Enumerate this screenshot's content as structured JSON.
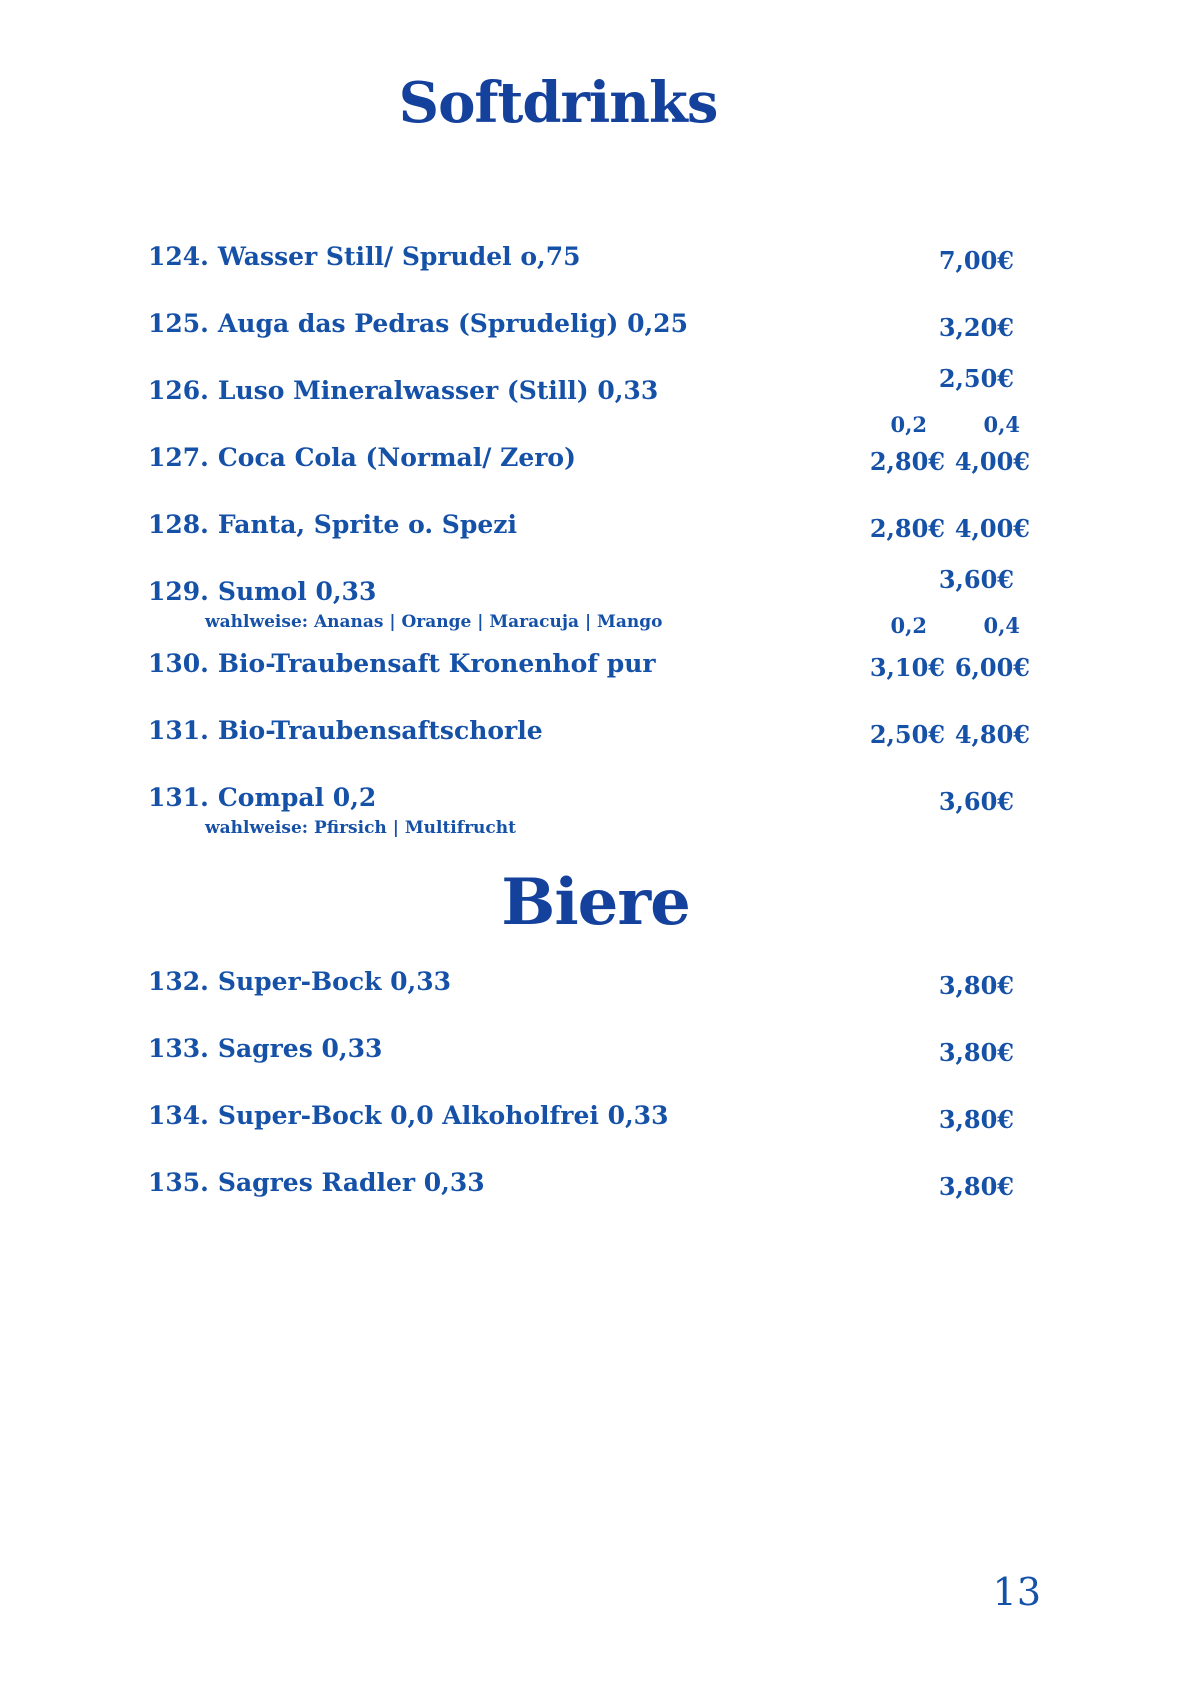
{
  "page": {
    "background_color": "#ffffff",
    "accent_color": "#1651A8",
    "heading_color": "#14419C",
    "page_number": "13"
  },
  "sections": [
    {
      "title": "Softdrinks",
      "size_columns": [
        "0,2",
        "0,4"
      ],
      "rows": [
        {
          "number": "124.",
          "name": "Wasser Still/ Sprudel o,75",
          "price": "7,00€"
        },
        {
          "number": "125.",
          "name": "Auga das Pedras (Sprudelig) 0,25",
          "price": "3,20€"
        },
        {
          "number": "126.",
          "name": "Luso Mineralwasser (Still) 0,33",
          "price": "2,50€",
          "sizes": {
            "small": "0,2",
            "large": "0,4"
          }
        },
        {
          "number": "127.",
          "name": "Coca Cola (Normal/ Zero)",
          "price_02": "2,80€",
          "price_04": "4,00€"
        },
        {
          "number": "128.",
          "name": "Fanta, Sprite o. Spezi",
          "price_02": "2,80€",
          "price_04": "4,00€"
        },
        {
          "number": "129.",
          "name": "Sumol 0,33",
          "subtext": "wahlweise: Ananas | Orange | Maracuja | Mango",
          "price": "3,60€",
          "sizes": {
            "small": "0,2",
            "large": "0,4"
          }
        },
        {
          "number": "130.",
          "name": "Bio-Traubensaft Kronenhof pur",
          "price_02": "3,10€",
          "price_04": "6,00€"
        },
        {
          "number": "131.",
          "name": "Bio-Traubensaftschorle",
          "price_02": "2,50€",
          "price_04": "4,80€"
        },
        {
          "number": "131.",
          "name": "Compal 0,2",
          "subtext": "wahlweise: Pfirsich | Multifrucht",
          "price": "3,60€"
        }
      ]
    },
    {
      "title": "Biere",
      "rows": [
        {
          "number": "132.",
          "name": "Super-Bock 0,33",
          "price": "3,80€"
        },
        {
          "number": "133.",
          "name": "Sagres 0,33",
          "price": "3,80€"
        },
        {
          "number": "134.",
          "name": "Super-Bock 0,0 Alkoholfrei 0,33",
          "price": "3,80€"
        },
        {
          "number": "135.",
          "name": "Sagres Radler 0,33",
          "price": "3,80€"
        }
      ]
    }
  ]
}
